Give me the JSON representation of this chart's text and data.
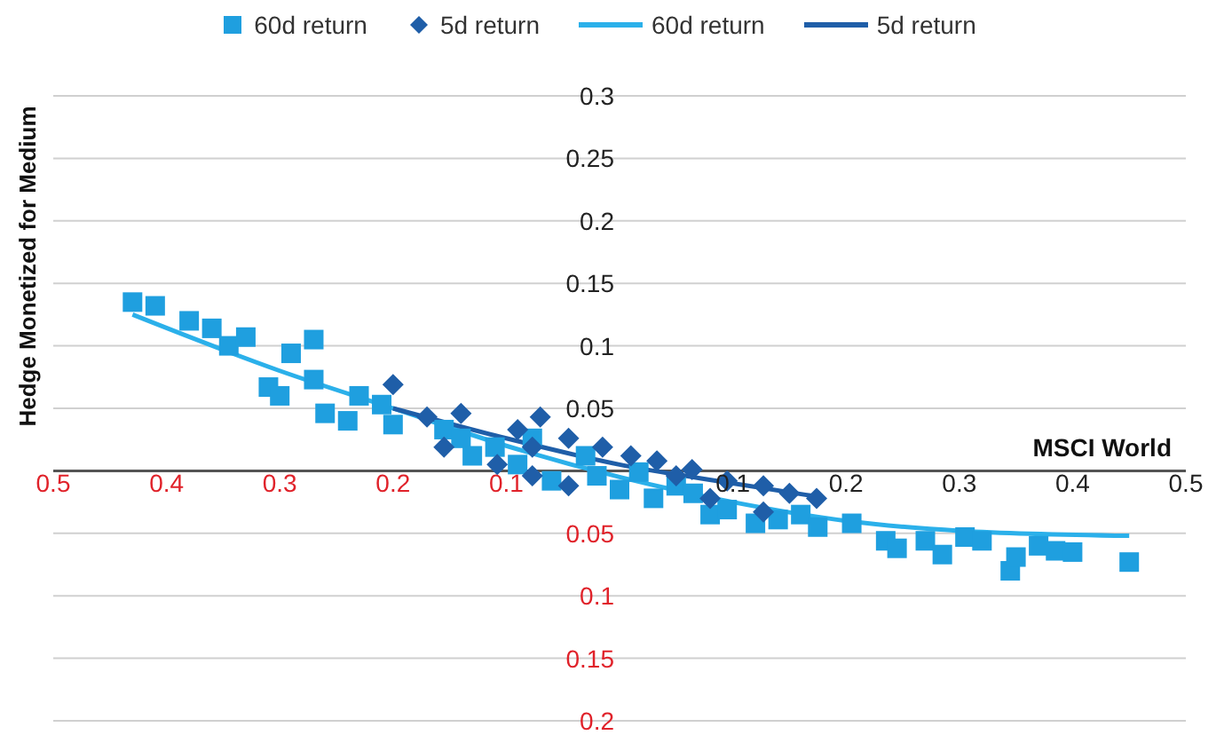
{
  "chart_data": {
    "type": "scatter",
    "ylabel": "Hedge Monetized for Medium",
    "xlabel": "MSCI World",
    "xlim": [
      -0.5,
      0.5
    ],
    "ylim": [
      -0.2,
      0.3
    ],
    "xticks": [
      {
        "value": -0.5,
        "label": "0.5"
      },
      {
        "value": -0.4,
        "label": "0.4"
      },
      {
        "value": -0.3,
        "label": "0.3"
      },
      {
        "value": -0.2,
        "label": "0.2"
      },
      {
        "value": -0.1,
        "label": "0.1"
      },
      0.1,
      0.2,
      0.3,
      0.4,
      0.5
    ],
    "yticks": [
      {
        "value": -0.2,
        "label": "0.2"
      },
      {
        "value": -0.15,
        "label": "0.15"
      },
      {
        "value": -0.1,
        "label": "0.1"
      },
      {
        "value": -0.05,
        "label": "0.05"
      },
      {
        "value": 0,
        "label": null
      },
      0.05,
      0.1,
      0.15,
      0.2,
      0.25,
      0.3
    ],
    "grid": "y",
    "legend": "top",
    "series": [
      {
        "name": "60d return",
        "type": "scatter",
        "marker": "square",
        "color": "#1f9fdf",
        "x": [
          -0.43,
          -0.41,
          -0.38,
          -0.36,
          -0.345,
          -0.33,
          -0.27,
          -0.31,
          -0.3,
          -0.29,
          -0.27,
          -0.26,
          -0.24,
          -0.23,
          -0.21,
          -0.2,
          -0.155,
          -0.14,
          -0.13,
          -0.11,
          -0.09,
          -0.077,
          -0.06,
          -0.03,
          -0.02,
          0,
          0.017,
          0.03,
          0.05,
          0.065,
          0.08,
          0.095,
          0.12,
          0.14,
          0.16,
          0.175,
          0.205,
          0.235,
          0.245,
          0.27,
          0.285,
          0.305,
          0.32,
          0.345,
          0.35,
          0.37,
          0.385,
          0.4,
          0.45
        ],
        "values": [
          0.135,
          0.132,
          0.12,
          0.114,
          0.1,
          0.107,
          0.105,
          0.067,
          0.06,
          0.094,
          0.073,
          0.046,
          0.04,
          0.06,
          0.053,
          0.037,
          0.033,
          0.026,
          0.012,
          0.019,
          0.005,
          0.026,
          -0.008,
          0.012,
          -0.004,
          -0.015,
          -0.001,
          -0.022,
          -0.012,
          -0.018,
          -0.035,
          -0.031,
          -0.042,
          -0.039,
          -0.035,
          -0.045,
          -0.042,
          -0.056,
          -0.062,
          -0.056,
          -0.067,
          -0.053,
          -0.056,
          -0.08,
          -0.069,
          -0.06,
          -0.064,
          -0.065,
          -0.073
        ]
      },
      {
        "name": "5d return",
        "type": "scatter",
        "marker": "diamond",
        "color": "#1f5ea8",
        "x": [
          -0.2,
          -0.17,
          -0.155,
          -0.14,
          -0.108,
          -0.09,
          -0.077,
          -0.077,
          -0.07,
          -0.045,
          -0.045,
          -0.015,
          0.01,
          0.033,
          0.05,
          0.064,
          0.08,
          0.095,
          0.127,
          0.127,
          0.15,
          0.174
        ],
        "values": [
          0.069,
          0.043,
          0.019,
          0.046,
          0.005,
          0.033,
          0.019,
          -0.004,
          0.043,
          0.026,
          -0.012,
          0.019,
          0.012,
          0.008,
          -0.004,
          0.001,
          -0.022,
          -0.008,
          -0.012,
          -0.033,
          -0.018,
          -0.022
        ]
      },
      {
        "name": "60d return",
        "type": "line",
        "marker": "none",
        "color": "#2bb0ea",
        "x": [
          -0.43,
          -0.3,
          -0.2,
          -0.1,
          0,
          0.1,
          0.2,
          0.3,
          0.45
        ],
        "values": [
          0.125,
          0.08,
          0.05,
          0.02,
          -0.005,
          -0.025,
          -0.04,
          -0.048,
          -0.052
        ]
      },
      {
        "name": "5d return",
        "type": "line",
        "marker": "none",
        "color": "#1f5ea8",
        "x": [
          -0.2,
          -0.1,
          0,
          0.1,
          0.17
        ],
        "values": [
          0.05,
          0.026,
          0.005,
          -0.01,
          -0.02
        ]
      }
    ]
  }
}
